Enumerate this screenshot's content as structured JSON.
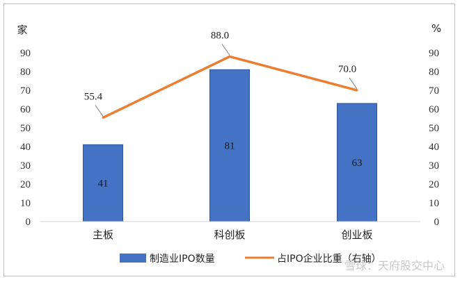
{
  "chart_data": {
    "type": "bar+line",
    "categories": [
      "主板",
      "科创板",
      "创业板"
    ],
    "series": [
      {
        "name": "制造业IPO数量",
        "type": "bar",
        "axis": "left",
        "values": [
          41,
          81,
          63
        ],
        "color": "#4472C4"
      },
      {
        "name": "占IPO企业比重（右轴）",
        "type": "line",
        "axis": "right",
        "values": [
          55.4,
          88.0,
          70.0
        ],
        "color": "#ED7D31"
      }
    ],
    "bar_labels": [
      "41",
      "81",
      "63"
    ],
    "line_labels": [
      "55.4",
      "88.0",
      "70.0"
    ],
    "left_axis": {
      "unit": "家",
      "ticks": [
        "0",
        "10",
        "20",
        "30",
        "40",
        "50",
        "60",
        "70",
        "80",
        "90"
      ],
      "ylim": [
        0,
        90
      ]
    },
    "right_axis": {
      "unit": "%",
      "ticks": [
        "0",
        "10",
        "20",
        "30",
        "40",
        "50",
        "60",
        "70",
        "80",
        "90"
      ],
      "ylim": [
        0,
        90
      ]
    },
    "grid": false,
    "legend_position": "bottom"
  },
  "watermark": "雪球：天府股交中心"
}
